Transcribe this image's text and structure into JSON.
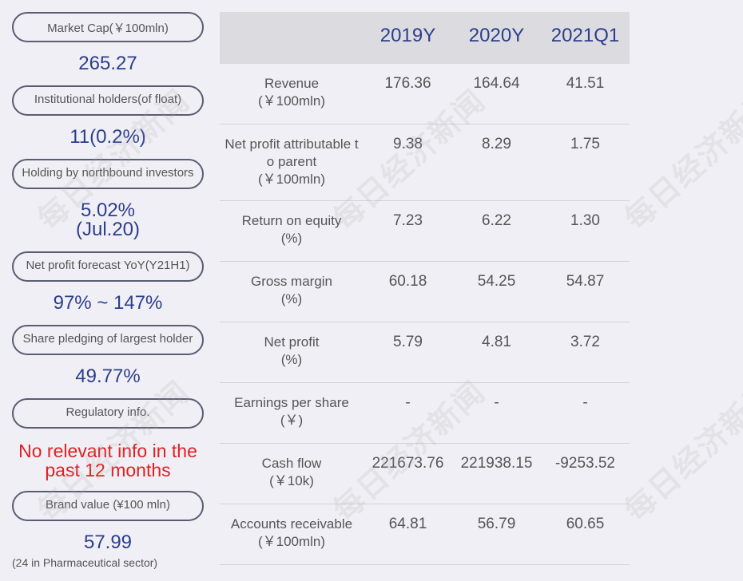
{
  "watermark_text": "每日经济新闻",
  "left_panel": {
    "items": [
      {
        "label": "Market Cap(￥100mln)",
        "value": "265.27"
      },
      {
        "label": "Institutional holders(of float)",
        "value": "11(0.2%)"
      },
      {
        "label": "Holding by northbound investors",
        "value": "5.02%",
        "value2": "(Jul.20)"
      },
      {
        "label": "Net profit forecast YoY(Y21H1)",
        "value": "97% ~ 147%"
      },
      {
        "label": "Share pledging of largest holder",
        "value": "49.77%"
      },
      {
        "label": "Regulatory info.",
        "value": "No relevant info in the",
        "value2": "past 12 months"
      },
      {
        "label": "Brand value (¥100 mln)",
        "value": "57.99",
        "note": "(24 in Pharmaceutical sector)"
      }
    ]
  },
  "table": {
    "headers": [
      "2019Y",
      "2020Y",
      "2021Q1"
    ],
    "rows": [
      {
        "label1": "Revenue",
        "label2": "(￥100mln)",
        "values": [
          "176.36",
          "164.64",
          "41.51"
        ]
      },
      {
        "label1": "Net profit attributable t",
        "label2": "o parent",
        "label3": "(￥100mln)",
        "values": [
          "9.38",
          "8.29",
          "1.75"
        ]
      },
      {
        "label1": "Return on equity",
        "label2": "(%)",
        "values": [
          "7.23",
          "6.22",
          "1.30"
        ]
      },
      {
        "label1": "Gross margin",
        "label2": "(%)",
        "values": [
          "60.18",
          "54.25",
          "54.87"
        ]
      },
      {
        "label1": "Net profit",
        "label2": "(%)",
        "values": [
          "5.79",
          "4.81",
          "3.72"
        ]
      },
      {
        "label1": "Earnings per share",
        "label2": "(￥)",
        "values": [
          "-",
          "-",
          "-"
        ]
      },
      {
        "label1": "Cash flow",
        "label2": "(￥10k)",
        "values": [
          "221673.76",
          "221938.15",
          "-9253.52"
        ]
      },
      {
        "label1": "Accounts receivable",
        "label2": "(￥100mln)",
        "values": [
          "64.81",
          "56.79",
          "60.65"
        ]
      }
    ]
  }
}
